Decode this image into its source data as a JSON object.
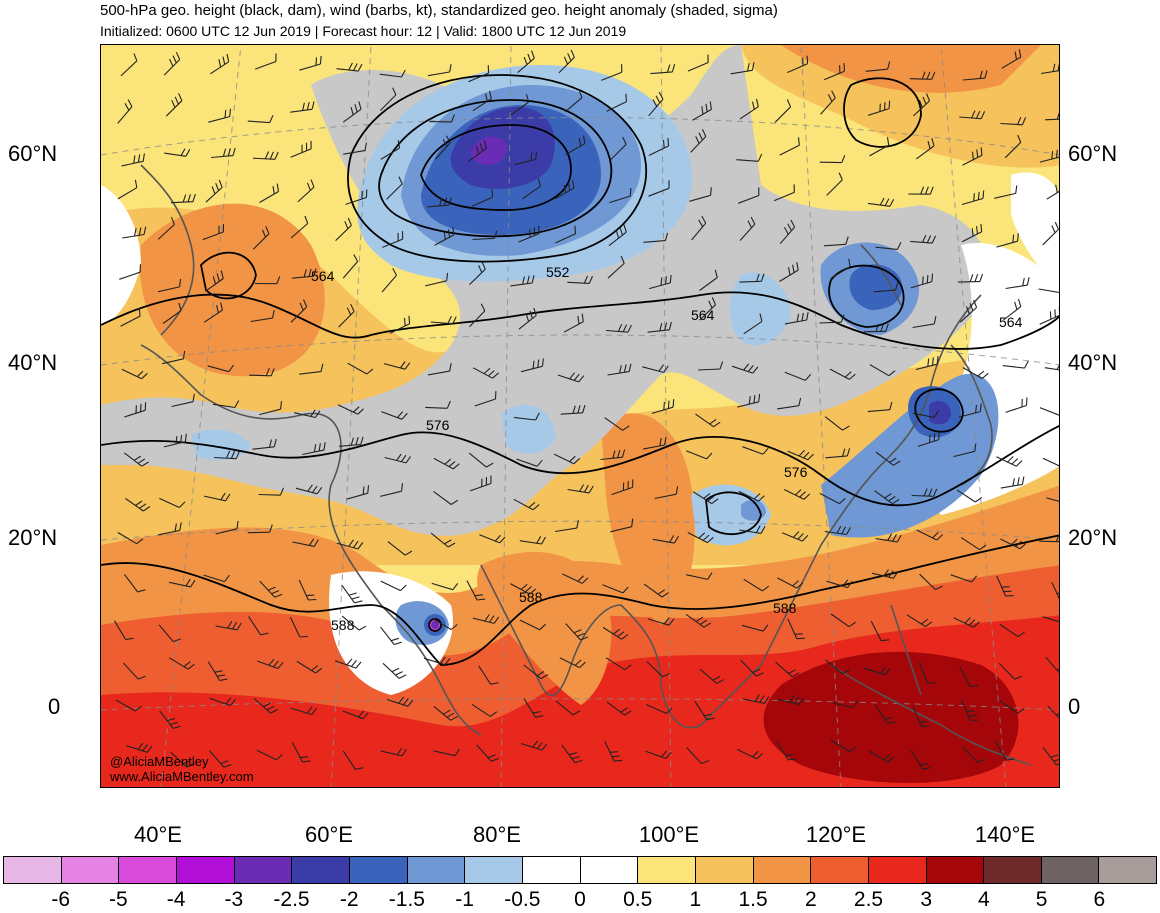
{
  "title": "500-hPa geo. height (black, dam), wind (barbs, kt), standardized geo. height anomaly (shaded, sigma)",
  "subtitle": "Initialized: 0600 UTC 12 Jun 2019 | Forecast hour: 12 | Valid: 1800 UTC 12 Jun 2019",
  "lat_labels": [
    "60°N",
    "40°N",
    "20°N",
    "0"
  ],
  "lon_labels": [
    "40°E",
    "60°E",
    "80°E",
    "100°E",
    "120°E",
    "140°E"
  ],
  "contour_labels": [
    "564",
    "552",
    "564",
    "564",
    "576",
    "576",
    "588",
    "588",
    "588"
  ],
  "watermark": {
    "handle": "@AliciaMBentley",
    "site": "www.AliciaMBentley.com"
  },
  "colorbar": {
    "labels": [
      "-6",
      "-5",
      "-4",
      "-3",
      "-2.5",
      "-2",
      "-1.5",
      "-1",
      "-0.5",
      "0",
      "0.5",
      "1",
      "1.5",
      "2",
      "2.5",
      "3",
      "4",
      "5",
      "6"
    ],
    "colors": [
      "#e7b8e7",
      "#e583e5",
      "#d94bdb",
      "#b10fd6",
      "#6a2cb5",
      "#3c3ca8",
      "#3a64bb",
      "#6f98d4",
      "#a7c9e8",
      "#ffffff",
      "#ffffff",
      "#fbe57a",
      "#f5c25c",
      "#f29445",
      "#ee5e31",
      "#e8281c",
      "#a4060a",
      "#6f2a2a",
      "#6e6362",
      "#a89d9a"
    ]
  },
  "anomaly_colors": {
    "strong_positive": "#a4060a",
    "positive_red": "#e8281c",
    "positive_orange": "#ee5e31",
    "light_orange": "#f29445",
    "tan": "#f5c25c",
    "yellow": "#fbe57a",
    "neutral": "#ffffff",
    "light_blue": "#a7c9e8",
    "mid_blue": "#6f98d4",
    "blue": "#3a64bb",
    "dark_blue": "#3c3ca8",
    "purple": "#6a2cb5",
    "gray": "#c8c8c8"
  }
}
